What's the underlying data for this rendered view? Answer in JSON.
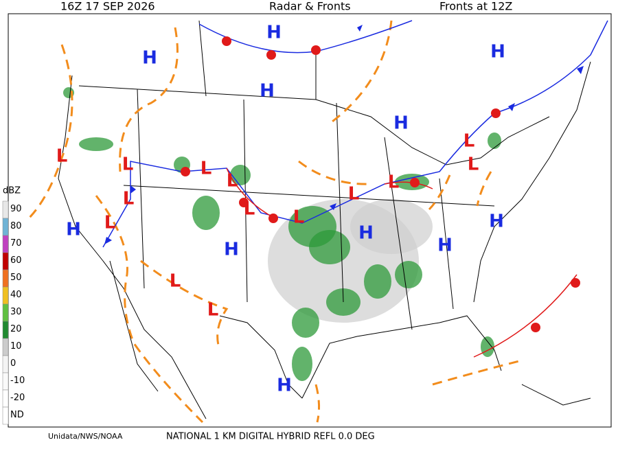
{
  "header": {
    "time": "16Z  17 SEP  2026",
    "title": "Radar & Fronts",
    "fronts": "Fronts at 12Z"
  },
  "legend": {
    "unit": "dBZ",
    "ticks": [
      "90",
      "80",
      "70",
      "60",
      "50",
      "40",
      "30",
      "20",
      "10",
      "0",
      "-10",
      "-20",
      "ND"
    ]
  },
  "map": {
    "centers": [
      "H",
      "H",
      "H",
      "H",
      "H",
      "H",
      "H",
      "H",
      "H",
      "H",
      "H",
      "L",
      "L",
      "L",
      "L",
      "L",
      "L",
      "L",
      "L",
      "L",
      "L",
      "L",
      "L",
      "L",
      "L"
    ]
  },
  "footer": {
    "source": "Unidata/NWS/NOAA",
    "product": "NATIONAL 1 KM DIGITAL HYBRID REFL 0.0 DEG"
  }
}
